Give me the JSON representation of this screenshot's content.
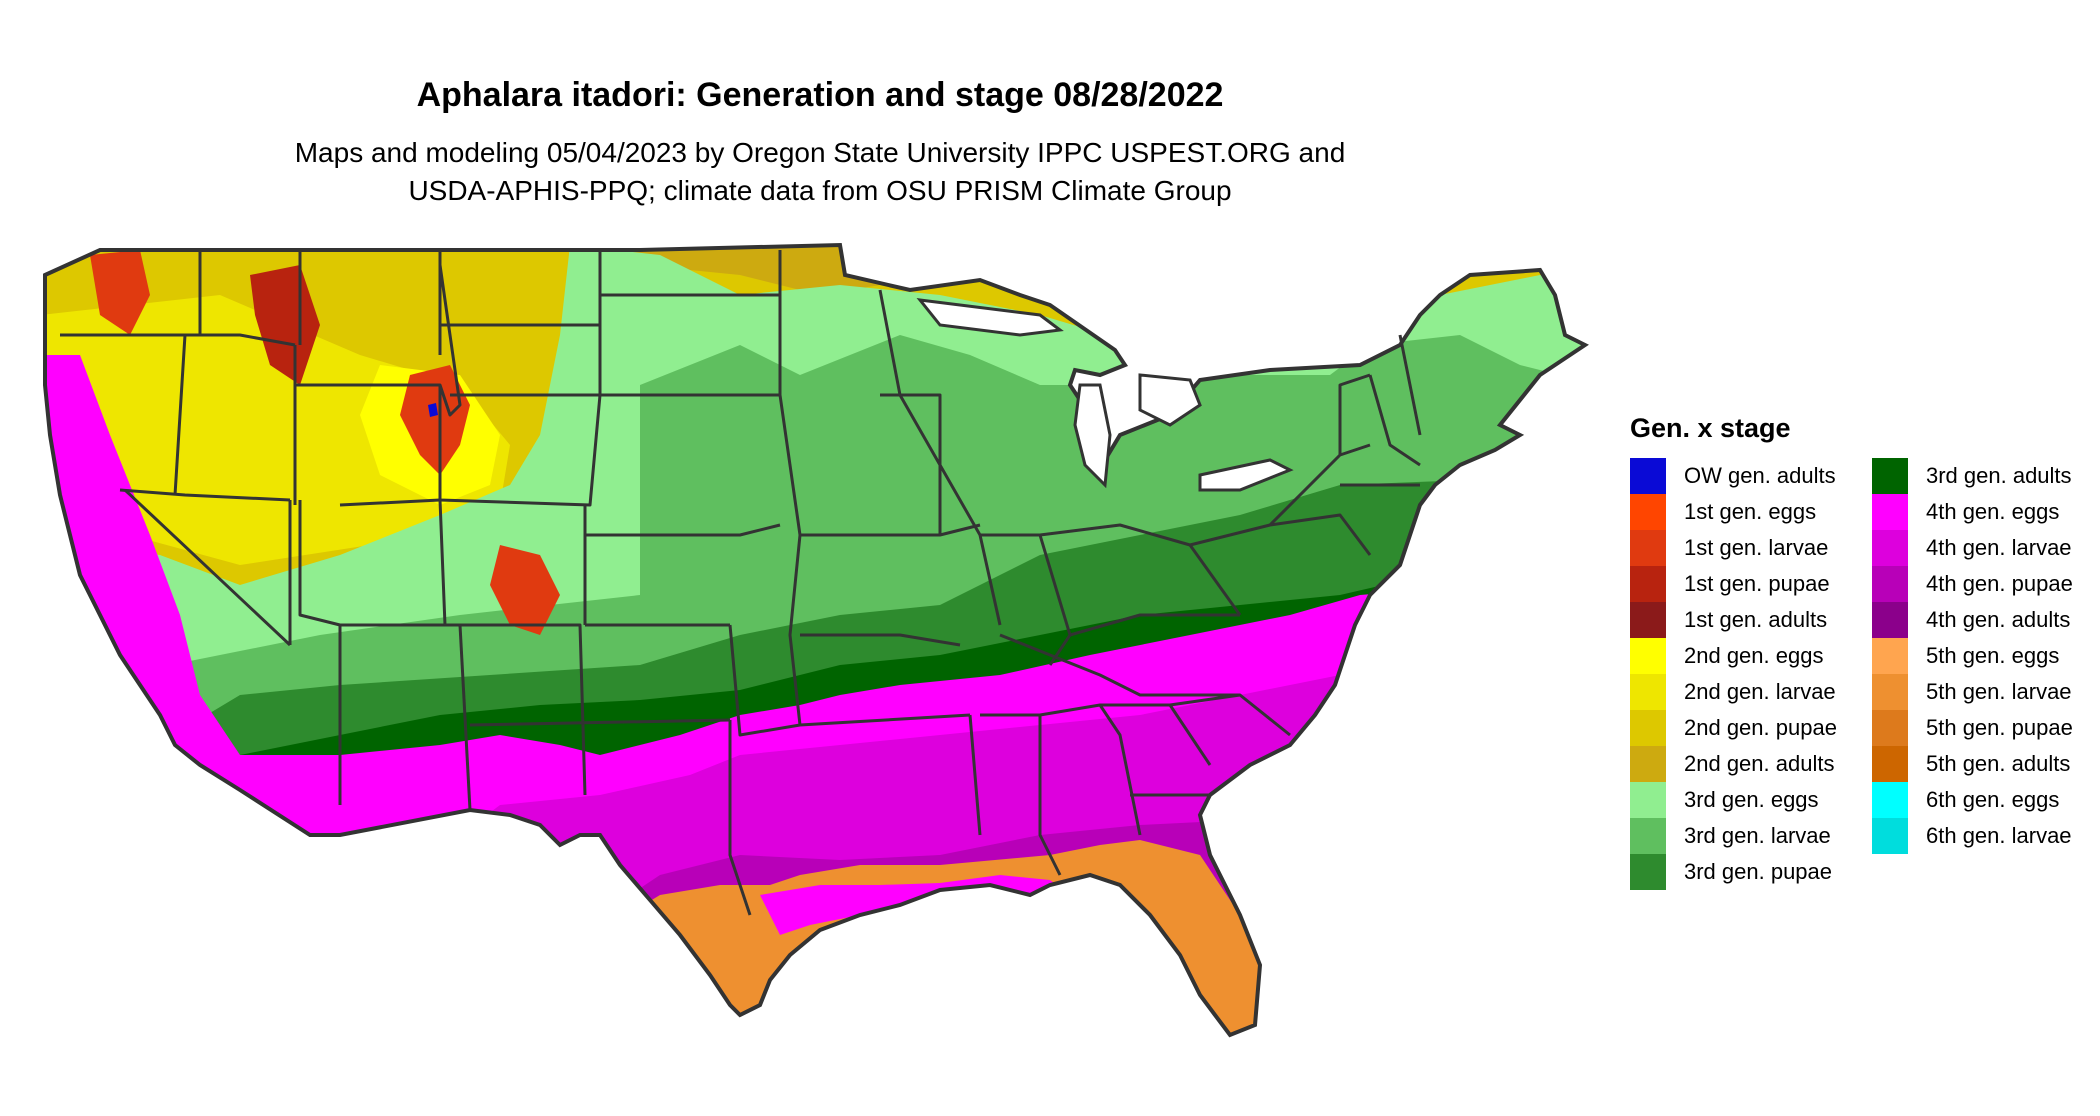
{
  "map": {
    "title": "Aphalara itadori: Generation and stage 08/28/2022",
    "subtitle_lines": [
      "Maps and modeling 05/04/2023 by Oregon State University IPPC USPEST.ORG and",
      "USDA-APHIS-PPQ; climate data from OSU PRISM Climate Group"
    ],
    "region": "Contiguous United States"
  },
  "legend": {
    "title": "Gen. x stage",
    "columns": [
      [
        {
          "label": "OW gen. adults",
          "color": "#0a0ad6"
        },
        {
          "label": "1st gen. eggs",
          "color": "#ff4500"
        },
        {
          "label": "1st gen. larvae",
          "color": "#e03a10"
        },
        {
          "label": "1st gen. pupae",
          "color": "#b8230f"
        },
        {
          "label": "1st gen. adults",
          "color": "#8b1a1a"
        },
        {
          "label": "2nd gen. eggs",
          "color": "#ffff00"
        },
        {
          "label": "2nd gen. larvae",
          "color": "#eee600"
        },
        {
          "label": "2nd gen. pupae",
          "color": "#ddc800"
        },
        {
          "label": "2nd gen. adults",
          "color": "#cdaa10"
        },
        {
          "label": "3rd gen. eggs",
          "color": "#90ee90"
        },
        {
          "label": "3rd gen. larvae",
          "color": "#5fbf5f"
        },
        {
          "label": "3rd gen. pupae",
          "color": "#2e8b2e"
        }
      ],
      [
        {
          "label": "3rd gen. adults",
          "color": "#006400"
        },
        {
          "label": "4th gen. eggs",
          "color": "#ff00ff"
        },
        {
          "label": "4th gen. larvae",
          "color": "#dd00dd"
        },
        {
          "label": "4th gen. pupae",
          "color": "#b800b8"
        },
        {
          "label": "4th gen. adults",
          "color": "#8b008b"
        },
        {
          "label": "5th gen. eggs",
          "color": "#ffa54f"
        },
        {
          "label": "5th gen. larvae",
          "color": "#ee9030"
        },
        {
          "label": "5th gen. pupae",
          "color": "#dd7a1c"
        },
        {
          "label": "5th gen. adults",
          "color": "#cd6600"
        },
        {
          "label": "6th gen. eggs",
          "color": "#00ffff"
        },
        {
          "label": "6th gen. larvae",
          "color": "#00dddd"
        }
      ]
    ]
  },
  "colors": {
    "background": "#ffffff",
    "state_border": "#333333"
  }
}
